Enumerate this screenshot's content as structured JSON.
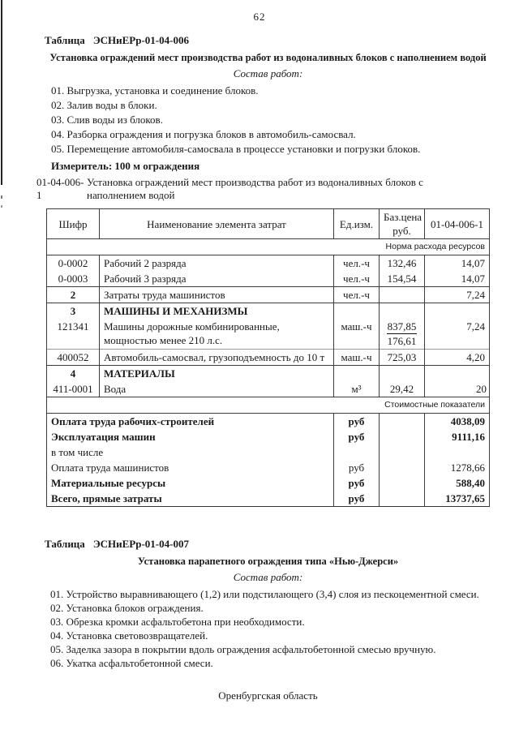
{
  "page": {
    "number": "62"
  },
  "section1": {
    "table_label_word": "Таблица",
    "table_label_code": "ЭСНиЕРр-01-04-006",
    "title": "Установка ограждений мест производства работ из водоналивных блоков с наполнением водой",
    "works_label": "Состав работ:",
    "works": [
      "01. Выгрузка, установка и соединение блоков.",
      "02. Залив воды в блоки.",
      "03. Слив воды из блоков.",
      "04. Разборка ограждения и погрузка блоков в автомобиль-самосвал.",
      "05. Перемещение автомобиля-самосвала в процессе установки и погрузки блоков."
    ],
    "measure_label": "Измеритель: 100 м ограждения",
    "norm_code": "01-04-006-1",
    "norm_desc": "Установка ограждений мест производства работ из водоналивных блоков с наполнением водой"
  },
  "table": {
    "headers": [
      "Шифр",
      "Наименование элемента затрат",
      "Ед.изм.",
      "Баз.цена руб.",
      "01-04-006-1"
    ],
    "norm_section_label": "Норма расхода ресурсов",
    "rows": [
      {
        "code": "0-0002",
        "name": "Рабочий 2 разряда",
        "unit": "чел.-ч",
        "price": "132,46",
        "value": "14,07"
      },
      {
        "code": "0-0003",
        "name": "Рабочий 3 разряда",
        "unit": "чел.-ч",
        "price": "154,54",
        "value": "14,07"
      },
      {
        "code": "2",
        "name": "Затраты труда машинистов",
        "unit": "чел.-ч",
        "price": "",
        "value": "7,24",
        "code_bold": true,
        "hline": true
      },
      {
        "code": "3",
        "name": "МАШИНЫ И МЕХАНИЗМЫ",
        "unit": "",
        "price": "",
        "value": "",
        "bold": true,
        "hline": true
      },
      {
        "code": "121341",
        "name": "Машины дорожные комбинированные, мощностью менее 210 л.с.",
        "unit": "маш.-ч",
        "price": "837,85",
        "price2": "176,61",
        "value": "7,24"
      },
      {
        "code": "400052",
        "name": "Автомобиль-самосвал, грузоподъемность до 10 т",
        "unit": "маш.-ч",
        "price": "725,03",
        "value": "4,20",
        "hline_light": true
      },
      {
        "code": "4",
        "name": "МАТЕРИАЛЫ",
        "unit": "",
        "price": "",
        "value": "",
        "bold": true,
        "hline": true
      },
      {
        "code": "411-0001",
        "name": "Вода",
        "unit": "м³",
        "price": "29,42",
        "value": "20",
        "value_edge": true
      }
    ],
    "cost_section_label": "Стоимостные показатели",
    "cost_rows": [
      {
        "name": "Оплата труда рабочих-строителей",
        "unit": "руб",
        "value": "4038,09",
        "bold": true
      },
      {
        "name": "Эксплуатация машин",
        "unit": "руб",
        "value": "9111,16",
        "bold": true
      },
      {
        "name": "в том числе",
        "unit": "",
        "value": "",
        "bold": false
      },
      {
        "name": "Оплата труда машинистов",
        "unit": "руб",
        "value": "1278,66",
        "bold": false
      },
      {
        "name": "Материальные ресурсы",
        "unit": "руб",
        "value": "588,40",
        "bold": true
      },
      {
        "name": "Всего, прямые затраты",
        "unit": "руб",
        "value": "13737,65",
        "bold": true
      }
    ]
  },
  "section2": {
    "table_label_word": "Таблица",
    "table_label_code": "ЭСНиЕРр-01-04-007",
    "title": "Установка парапетного ограждения типа «Нью-Джерси»",
    "works_label": "Состав работ:",
    "works": [
      "01. Устройство выравнивающего (1,2) или подстилающего (3,4) слоя из пескоцементной смеси.",
      "02. Установка блоков ограждения.",
      "03. Обрезка кромки асфальтобетона при необходимости.",
      "04. Установка световозвращателей.",
      "05. Заделка зазора в покрытии вдоль ограждения асфальтобетонной смесью вручную.",
      "06. Укатка асфальтобетонной смеси."
    ]
  },
  "footer": {
    "region": "Оренбургская область"
  }
}
